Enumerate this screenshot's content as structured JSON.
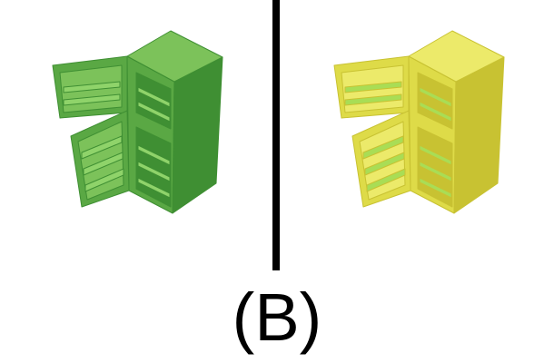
{
  "caption": "(B)",
  "panels": [
    {
      "object": "refrigerator-open-doors",
      "colors": {
        "main": "#5aa844",
        "dark": "#3f8f33",
        "light": "#7cc25a",
        "accent": "#8fd36a"
      }
    },
    {
      "object": "refrigerator-open-doors",
      "colors": {
        "main": "#dedb48",
        "dark": "#c8c232",
        "light": "#ecea6a",
        "accent": "#a9dd55"
      }
    }
  ],
  "divider_color": "#000000"
}
